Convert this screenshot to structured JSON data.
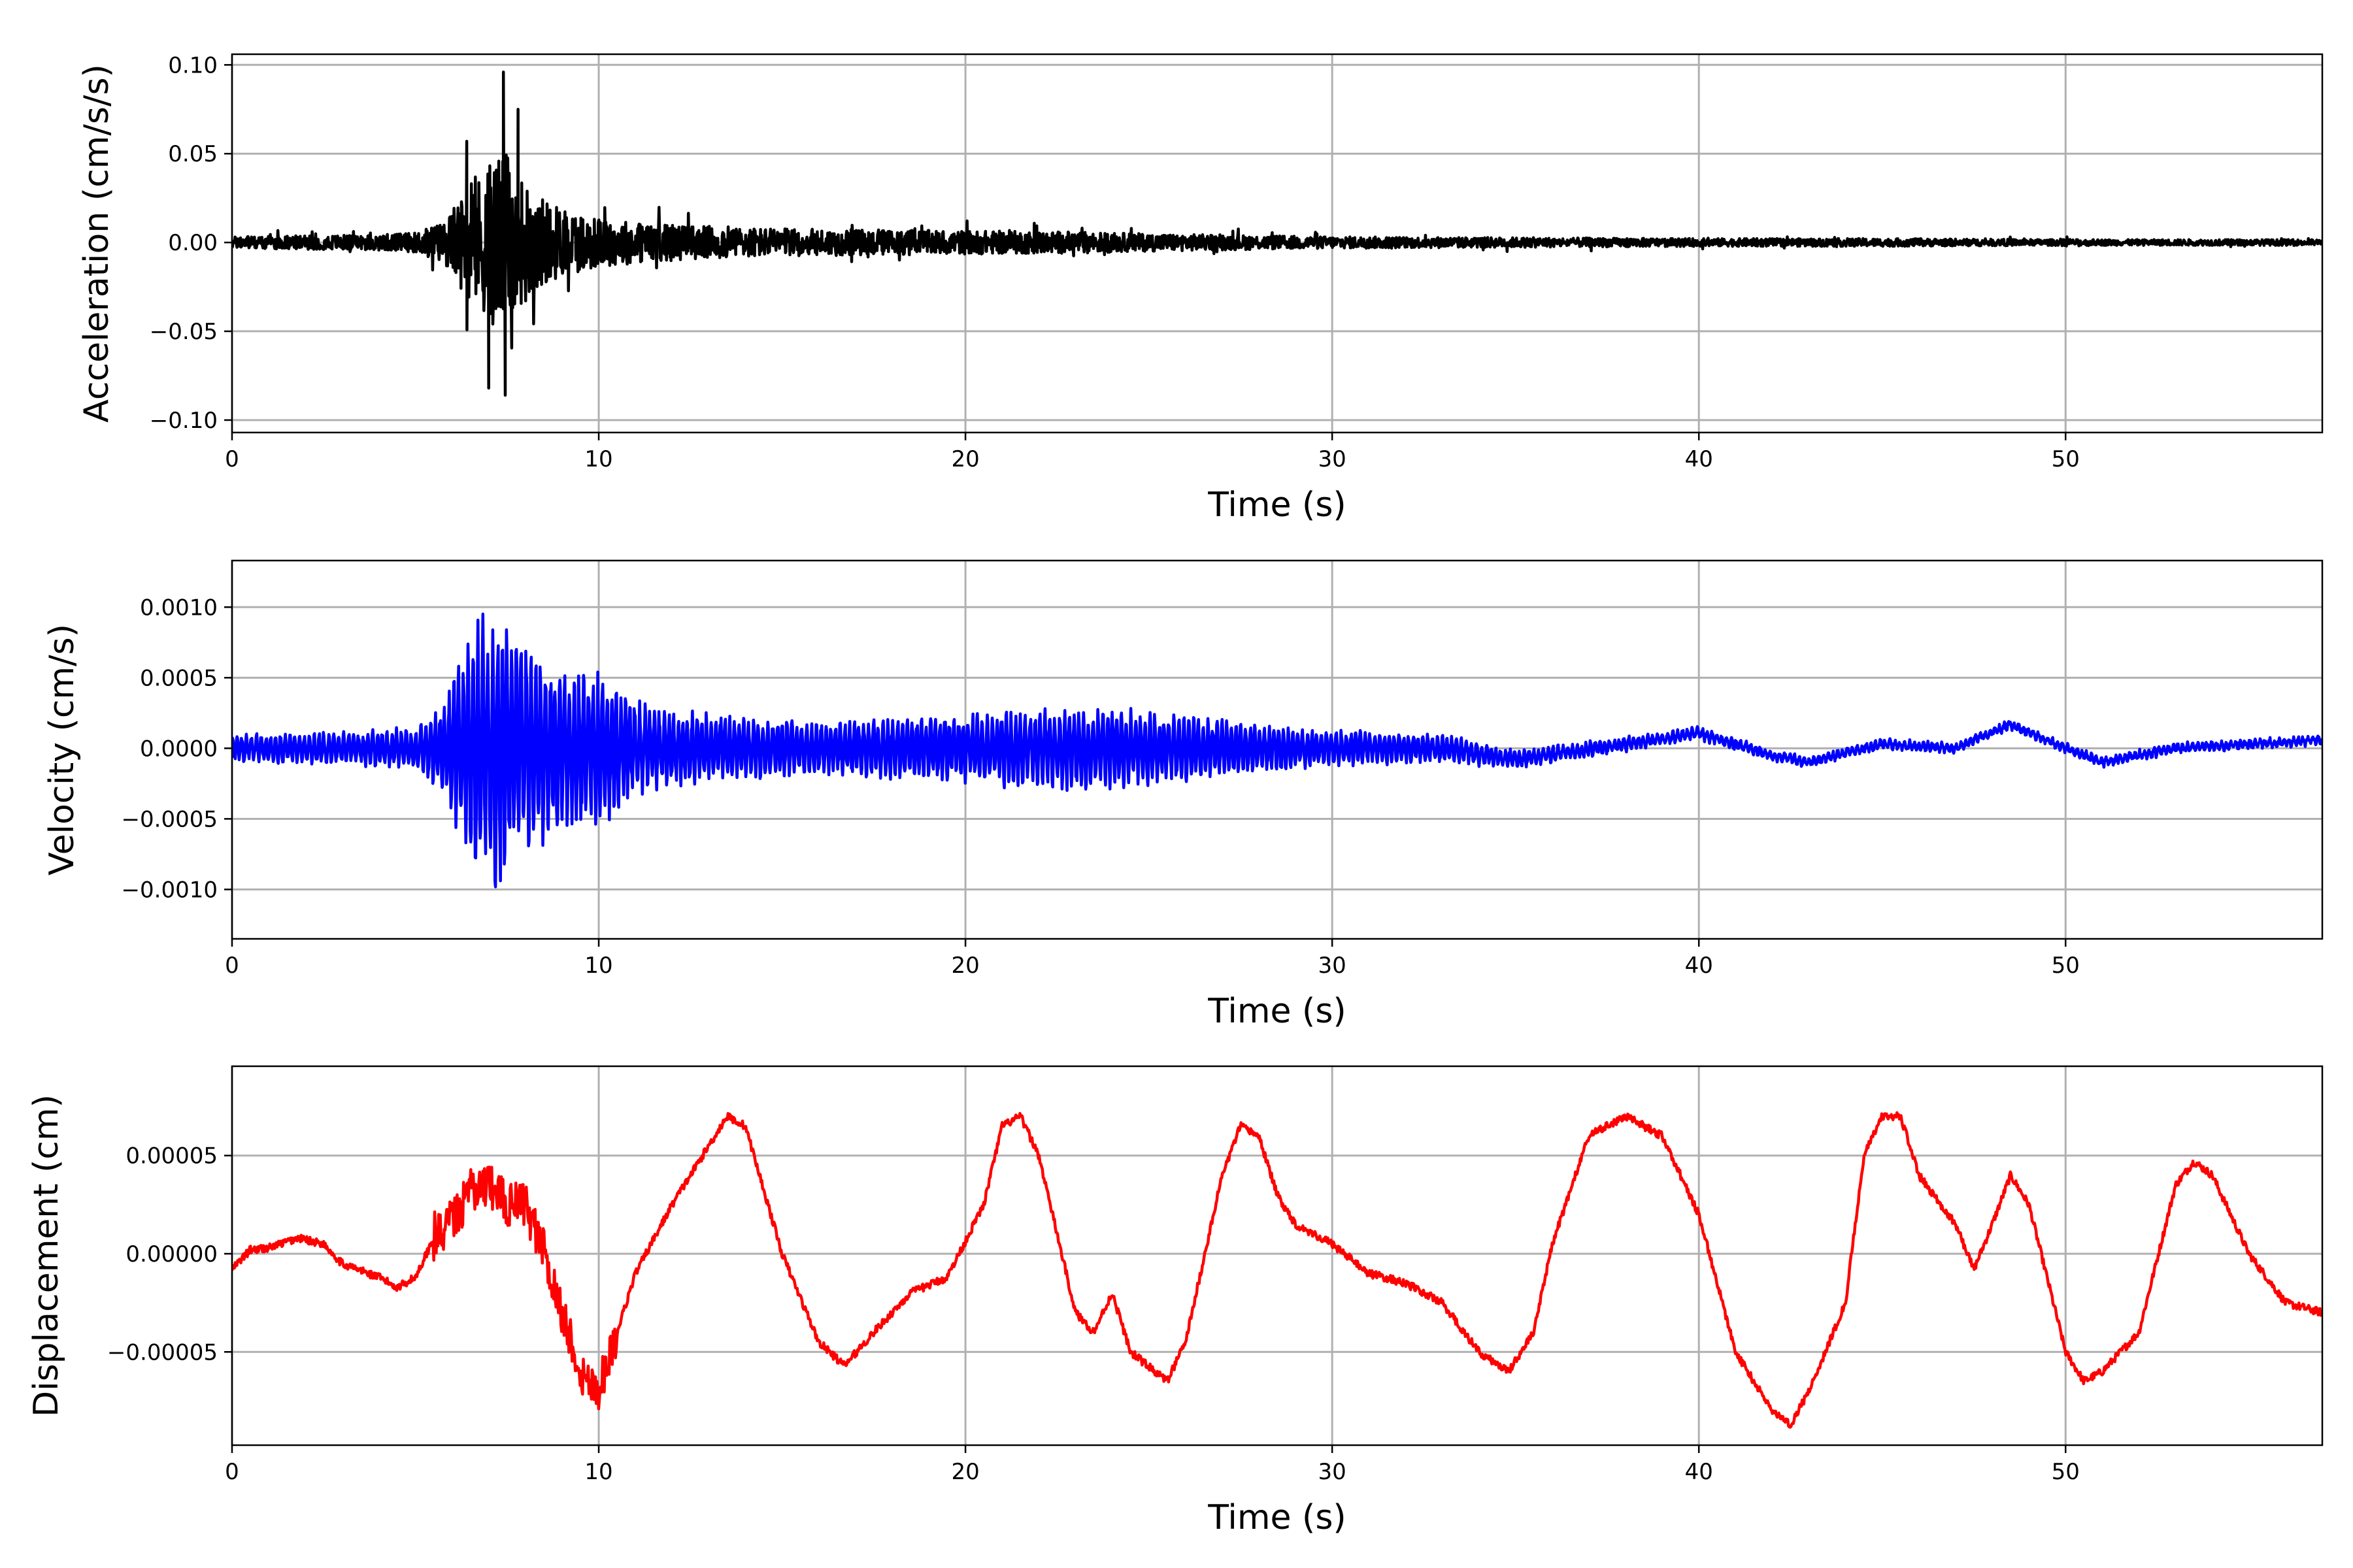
{
  "chart_data": [
    {
      "type": "line",
      "name": "acceleration",
      "xlabel": "Time (s)",
      "ylabel": "Acceleration (cm/s/s)",
      "xlim": [
        0,
        57
      ],
      "ylim": [
        -0.107,
        0.106
      ],
      "xticks": [
        0,
        10,
        20,
        30,
        40,
        50
      ],
      "xtick_labels": [
        "0",
        "10",
        "20",
        "30",
        "40",
        "50"
      ],
      "yticks": [
        -0.1,
        -0.05,
        0.0,
        0.05,
        0.1
      ],
      "ytick_labels": [
        "−0.10",
        "−0.05",
        "0.00",
        "0.05",
        "0.10"
      ],
      "grid": true,
      "color": "#000000",
      "series": [
        {
          "x": [
            0,
            2,
            4,
            5,
            5.8,
            6.2,
            6.5,
            6.8,
            7.1,
            7.4,
            7.7,
            8.0,
            8.5,
            9,
            10,
            12,
            15,
            20,
            23,
            25,
            30,
            35,
            40,
            45,
            50,
            57
          ],
          "envelope": [
            0.006,
            0.007,
            0.008,
            0.01,
            0.022,
            0.045,
            0.06,
            0.07,
            0.085,
            0.096,
            0.072,
            0.06,
            0.045,
            0.035,
            0.025,
            0.018,
            0.014,
            0.012,
            0.011,
            0.009,
            0.006,
            0.005,
            0.004,
            0.004,
            0.003,
            0.003
          ],
          "peaks": [
            {
              "t": 7.4,
              "v": 0.096
            },
            {
              "t": 7.45,
              "v": -0.086
            },
            {
              "t": 7.0,
              "v": -0.082
            },
            {
              "t": 7.8,
              "v": 0.075
            },
            {
              "t": 6.4,
              "v": 0.057
            }
          ]
        }
      ]
    },
    {
      "type": "line",
      "name": "velocity",
      "xlabel": "Time (s)",
      "ylabel": "Velocity (cm/s)",
      "xlim": [
        0,
        57
      ],
      "ylim": [
        -0.00135,
        0.00133
      ],
      "xticks": [
        0,
        10,
        20,
        30,
        40,
        50
      ],
      "xtick_labels": [
        "0",
        "10",
        "20",
        "30",
        "40",
        "50"
      ],
      "yticks": [
        -0.001,
        -0.0005,
        0.0,
        0.0005,
        0.001
      ],
      "ytick_labels": [
        "−0.0010",
        "−0.0005",
        "0.0000",
        "0.0005",
        "0.0010"
      ],
      "grid": true,
      "color": "#0000ff",
      "series": [
        {
          "x": [
            0,
            3,
            5,
            5.8,
            6.3,
            6.8,
            7.3,
            7.8,
            8.5,
            9.5,
            10,
            11,
            13,
            16,
            20,
            22,
            24,
            26,
            28,
            30,
            33,
            35,
            40,
            45,
            50,
            57
          ],
          "envelope": [
            0.0001,
            0.00012,
            0.00015,
            0.00035,
            0.0008,
            0.001,
            0.0011,
            0.0009,
            0.0007,
            0.0006,
            0.0006,
            0.00035,
            0.00025,
            0.0002,
            0.00025,
            0.0003,
            0.0003,
            0.00025,
            0.00018,
            0.00013,
            0.0001,
            6e-05,
            4e-05,
            3e-05,
            3e-05,
            3e-05
          ],
          "trend": {
            "t": [
              0,
              30,
              33,
              35,
              38,
              40,
              42,
              43,
              45,
              47,
              48.5,
              50,
              51,
              53,
              57
            ],
            "v": [
              0,
              0,
              0,
              -8e-05,
              3e-05,
              0.00011,
              -5e-05,
              -0.0001,
              3e-05,
              0.0,
              0.00017,
              0.0,
              -0.0001,
              0.0,
              6e-05
            ]
          }
        }
      ]
    },
    {
      "type": "line",
      "name": "displacement",
      "xlabel": "Time (s)",
      "ylabel": "Displacement (cm)",
      "xlim": [
        0,
        57
      ],
      "ylim": [
        -9.75e-05,
        9.55e-05
      ],
      "xticks": [
        0,
        10,
        20,
        30,
        40,
        50
      ],
      "xtick_labels": [
        "0",
        "10",
        "20",
        "30",
        "40",
        "50"
      ],
      "yticks": [
        -5e-05,
        0.0,
        5e-05
      ],
      "ytick_labels": [
        "−0.00005",
        "0.00000",
        "0.00005"
      ],
      "grid": true,
      "color": "#ff0000",
      "series": [
        {
          "x": [
            0,
            0.5,
            1,
            1.8,
            2.5,
            3,
            4,
            4.5,
            5,
            5.5,
            6,
            6.5,
            7,
            7.5,
            8,
            8.5,
            9,
            9.5,
            10,
            11,
            12,
            13,
            13.5,
            14,
            15,
            16,
            16.7,
            17.5,
            18.5,
            19.5,
            20.5,
            21,
            21.5,
            22,
            23,
            23.5,
            24,
            24.5,
            25.5,
            26,
            27,
            27.5,
            28,
            28.5,
            29,
            30,
            31,
            32,
            33,
            34,
            34.8,
            35.5,
            36,
            37,
            38,
            39,
            40,
            41,
            42,
            42.5,
            43,
            44,
            44.5,
            45,
            45.5,
            46,
            47,
            47.5,
            48,
            48.5,
            49,
            50,
            50.5,
            51,
            52,
            53,
            53.5,
            54,
            55,
            56,
            57
          ],
          "y": [
            -8e-06,
            2e-06,
            3e-06,
            8e-06,
            5e-06,
            -5e-06,
            -1.2e-05,
            -1.7e-05,
            -1.2e-05,
            8e-06,
            1.8e-05,
            3e-05,
            3.5e-05,
            2.5e-05,
            2.5e-05,
            0.0,
            -3e-05,
            -6e-05,
            -7e-05,
            -1e-05,
            2.5e-05,
            5.5e-05,
            7e-05,
            6.5e-05,
            0.0,
            -4.5e-05,
            -5.7e-05,
            -4e-05,
            -2e-05,
            -1.2e-05,
            2.5e-05,
            6.5e-05,
            7e-05,
            5e-05,
            -3e-05,
            -4e-05,
            -2e-05,
            -5e-05,
            -6.5e-05,
            -4.5e-05,
            4e-05,
            6.5e-05,
            6e-05,
            3e-05,
            1.5e-05,
            5e-06,
            -1e-05,
            -1.5e-05,
            -2.5e-05,
            -5e-05,
            -6e-05,
            -4e-05,
            5e-06,
            6e-05,
            7e-05,
            6e-05,
            2e-05,
            -5e-05,
            -8e-05,
            -8.7e-05,
            -7e-05,
            -2.5e-05,
            5e-05,
            7e-05,
            7e-05,
            4e-05,
            1.5e-05,
            -8e-06,
            1.5e-05,
            4e-05,
            2.5e-05,
            -5e-05,
            -6.5e-05,
            -6e-05,
            -4e-05,
            3.5e-05,
            4.7e-05,
            4e-05,
            0.0,
            -2.5e-05,
            -3e-05
          ]
        }
      ]
    }
  ]
}
